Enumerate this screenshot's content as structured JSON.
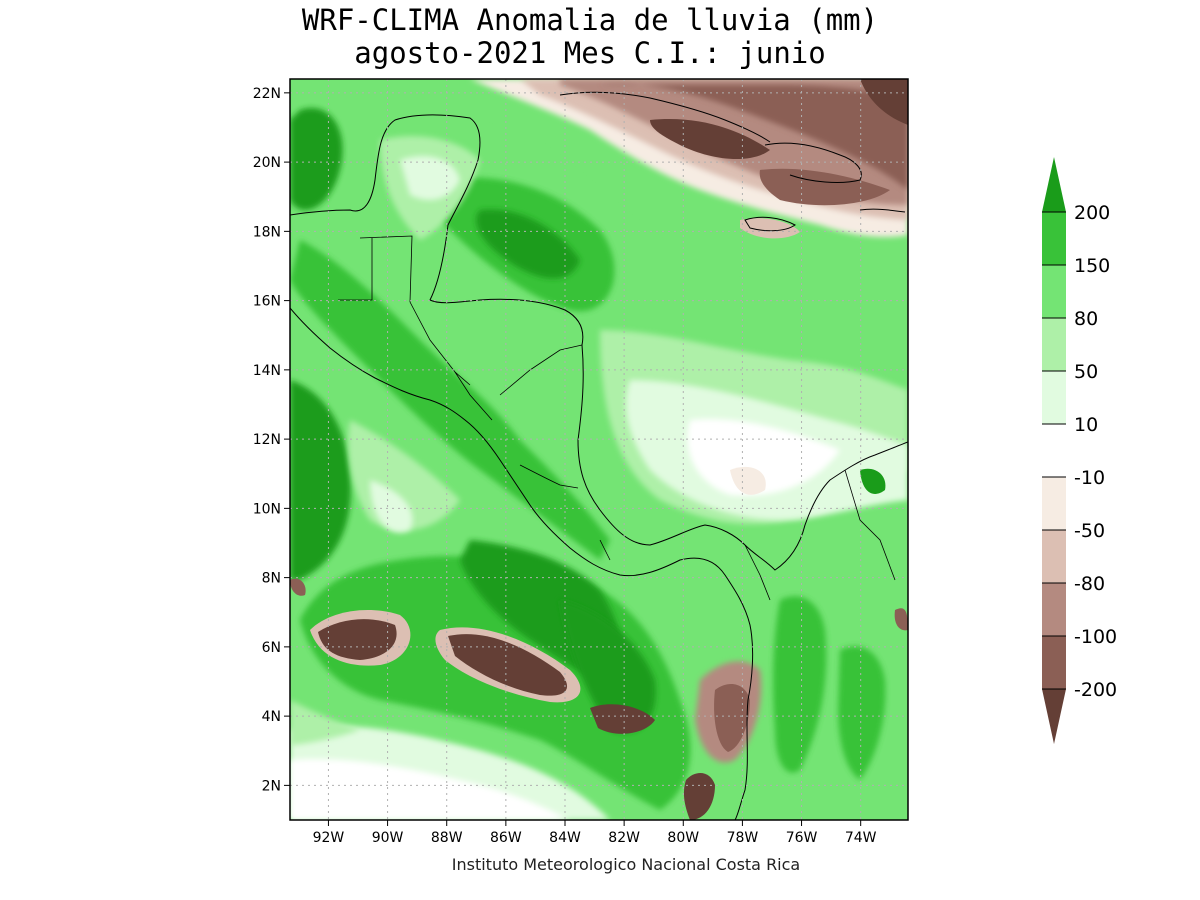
{
  "title": {
    "line1": "WRF-CLIMA Anomalia de lluvia (mm)",
    "line2": "agosto-2021 Mes C.I.: junio"
  },
  "credit": "Instituto Meteorologico Nacional Costa Rica",
  "axes": {
    "lat_ticks": [
      "22N",
      "20N",
      "18N",
      "16N",
      "14N",
      "12N",
      "10N",
      "8N",
      "6N",
      "4N",
      "2N"
    ],
    "lon_ticks": [
      "92W",
      "90W",
      "88W",
      "86W",
      "84W",
      "82W",
      "80W",
      "78W",
      "76W",
      "74W"
    ],
    "lat_values": [
      22,
      20,
      18,
      16,
      14,
      12,
      10,
      8,
      6,
      4,
      2
    ],
    "lon_values": [
      -92,
      -90,
      -88,
      -86,
      -84,
      -82,
      -80,
      -78,
      -76,
      -74
    ],
    "lat_range": [
      1,
      22.4
    ],
    "lon_range": [
      -93.3,
      -72.4
    ],
    "grid": "dotted"
  },
  "colorbar": {
    "labels": [
      "200",
      "150",
      "80",
      "50",
      "10",
      "-10",
      "-50",
      "-80",
      "-100",
      "-200"
    ],
    "colors": [
      "#1a9c1a",
      "#39c239",
      "#74e474",
      "#aef0a8",
      "#e1fbe0",
      "#ffffff",
      "#f6ece3",
      "#dcbfb3",
      "#b48a80",
      "#8b5f55",
      "#643f36"
    ]
  },
  "palette": {
    "dark_green": "#1a9c1a",
    "green": "#39c239",
    "light_green": "#74e474",
    "pale_green": "#aef0a8",
    "very_pale_green": "#e1fbe0",
    "neutral": "#ffffff",
    "pale_brown": "#f6ece3",
    "light_brown": "#dcbfb3",
    "brown": "#b48a80",
    "dark_brown": "#8b5f55",
    "darkest_brown": "#643f36"
  }
}
